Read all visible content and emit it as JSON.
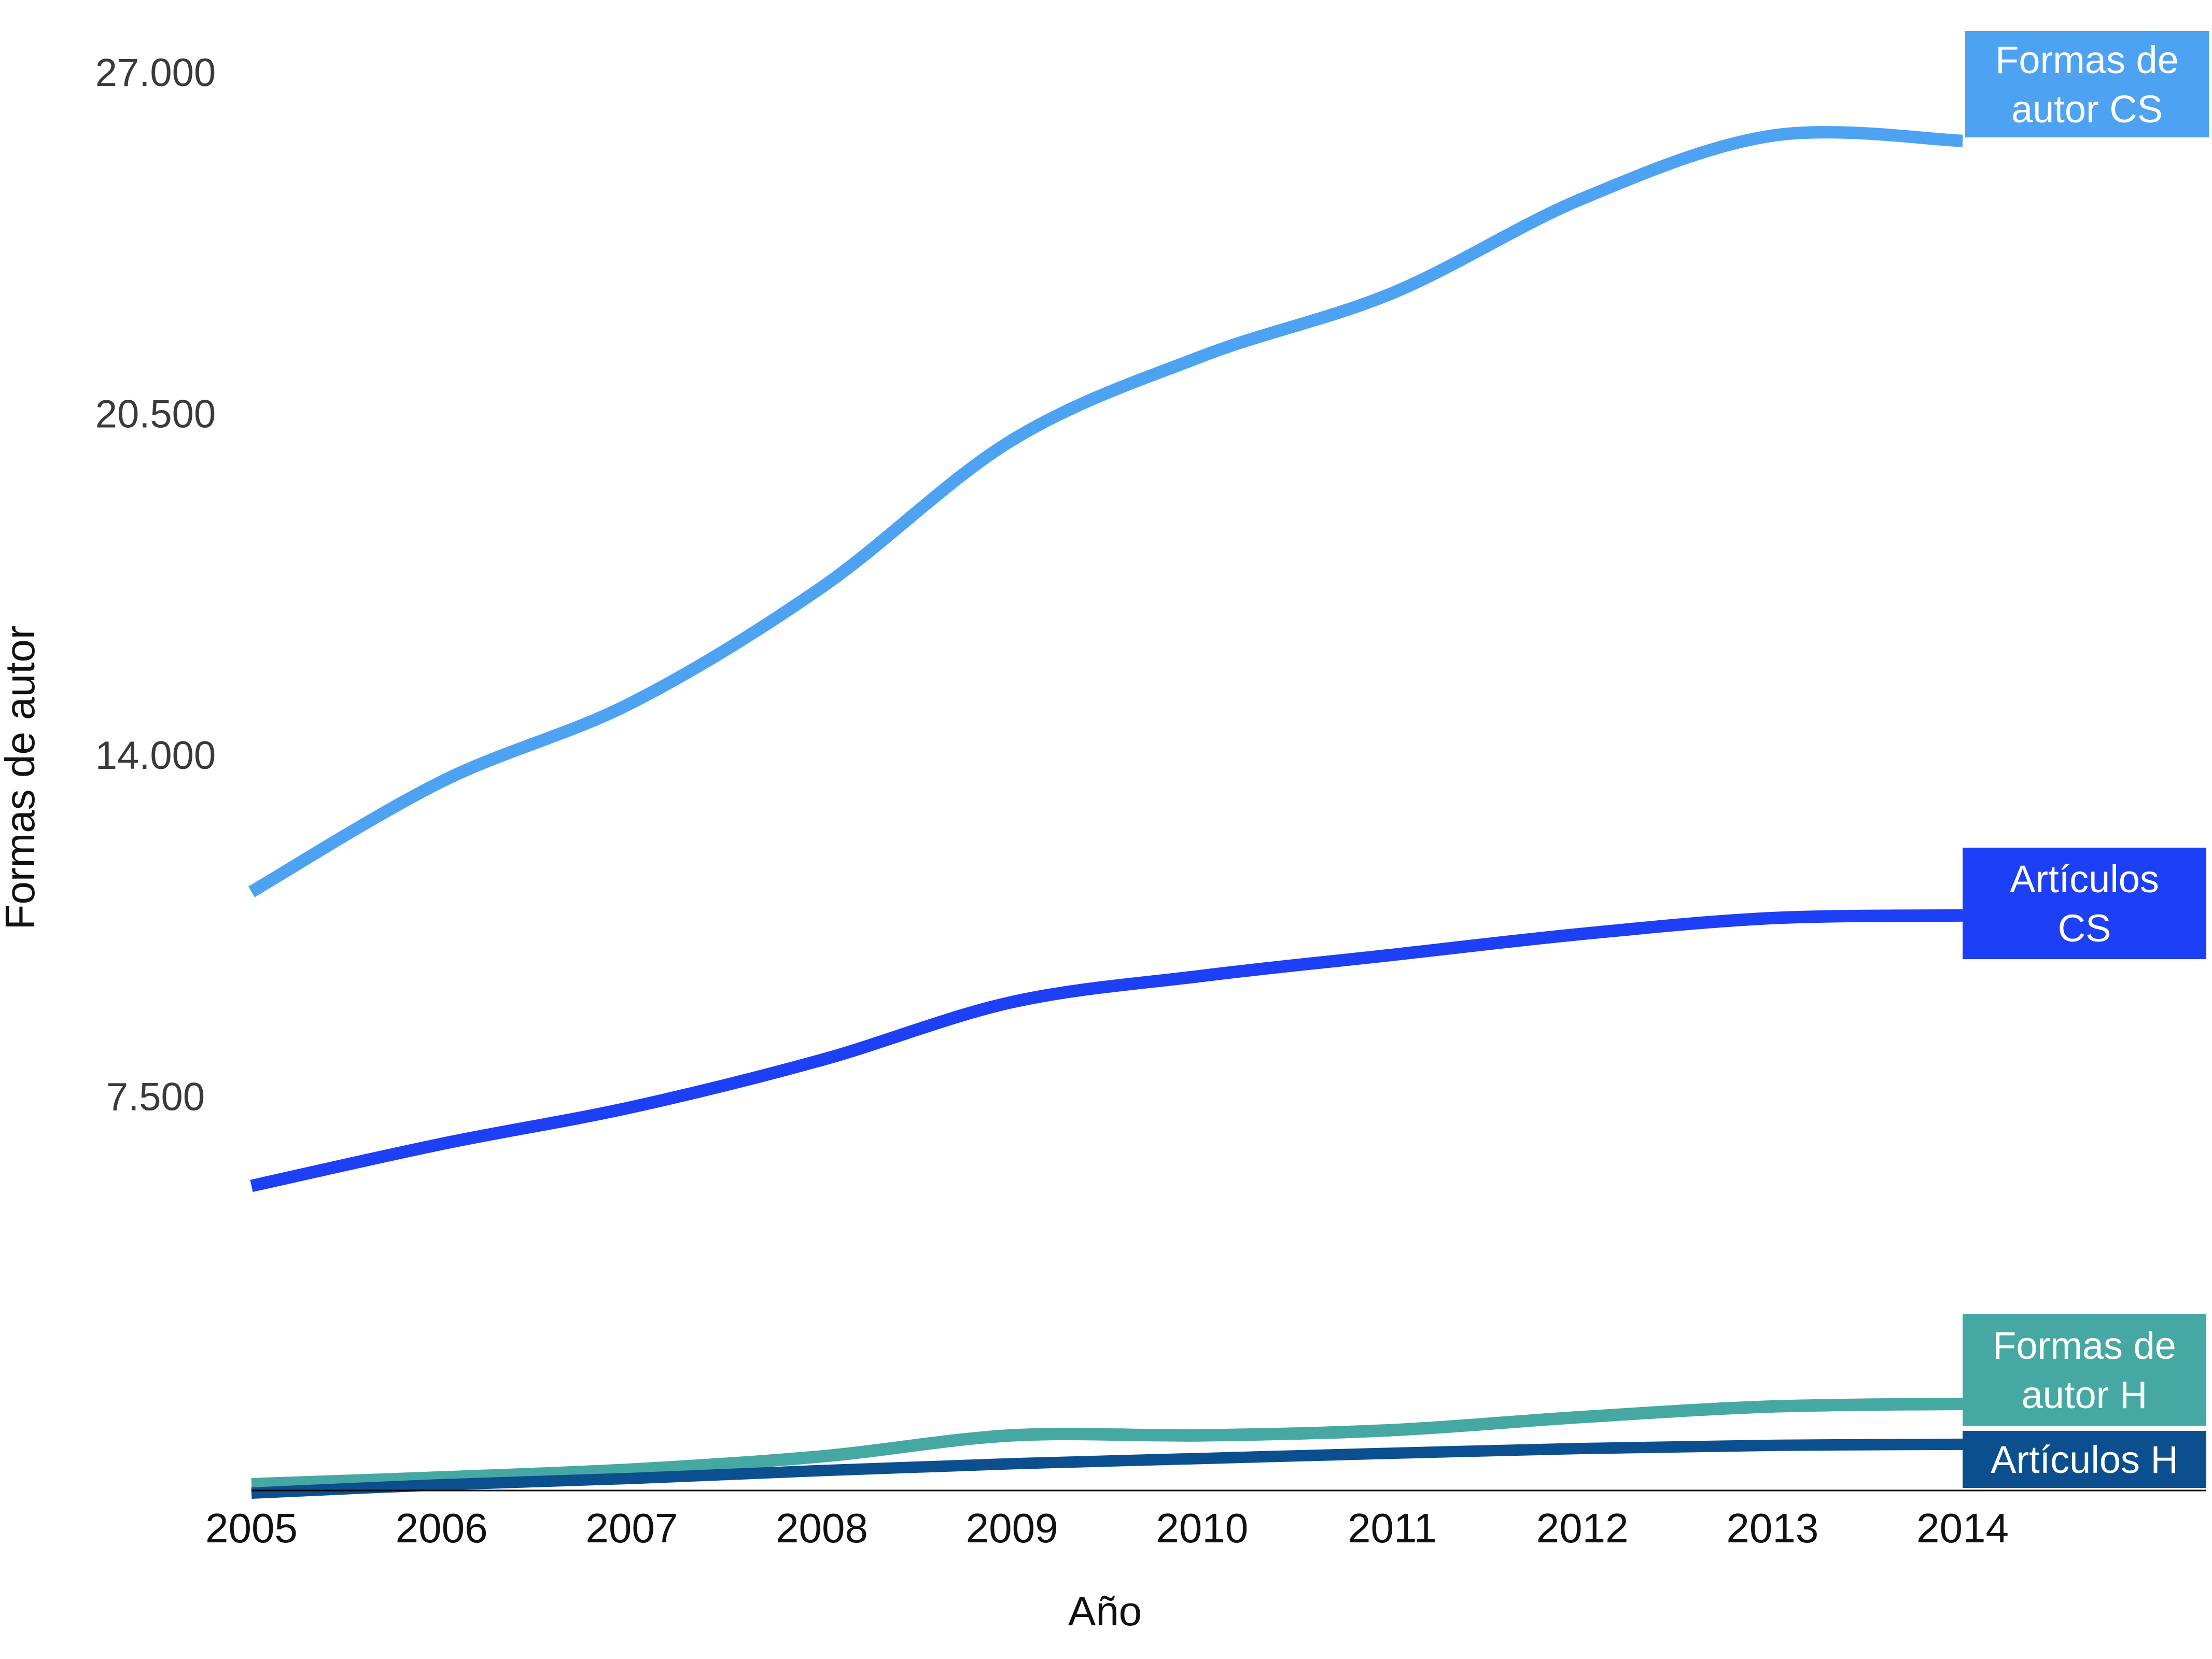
{
  "chart_data": {
    "type": "line",
    "xlabel": "Año",
    "ylabel": "Formas de autor",
    "x": [
      2005,
      2006,
      2007,
      2008,
      2009,
      2010,
      2011,
      2012,
      2013,
      2014
    ],
    "x_tick_labels": [
      "2005",
      "2006",
      "2007",
      "2008",
      "2009",
      "2010",
      "2011",
      "2012",
      "2013",
      "2014"
    ],
    "y_ticks": [
      7500,
      14000,
      20500,
      27000
    ],
    "y_tick_labels": [
      "7.500",
      "14.000",
      "20.500",
      "27.000"
    ],
    "ylim": [
      0,
      27000
    ],
    "grid": false,
    "legend": "inline labels at right end of each line",
    "series": [
      {
        "name": "Formas de autor CS",
        "label_lines": [
          "Formas de",
          "autor CS"
        ],
        "color": "#4da3f2",
        "values": [
          11400,
          13500,
          15000,
          17200,
          20000,
          21600,
          22800,
          24600,
          25800,
          25700
        ]
      },
      {
        "name": "Artículos CS",
        "label_lines": [
          "Artículos",
          "CS"
        ],
        "color": "#1d3ff5",
        "values": [
          5800,
          6600,
          7300,
          8200,
          9300,
          9800,
          10200,
          10600,
          10900,
          10950
        ]
      },
      {
        "name": "Formas de autor H",
        "label_lines": [
          "Formas de",
          "autor  H"
        ],
        "color": "#46a8a3",
        "values": [
          120,
          250,
          400,
          650,
          1050,
          1050,
          1150,
          1400,
          1600,
          1650
        ]
      },
      {
        "name": "Artículos H",
        "label_lines": [
          "Artículos H"
        ],
        "color": "#0b4f8f",
        "values": [
          -50,
          110,
          230,
          380,
          510,
          610,
          710,
          800,
          860,
          880
        ]
      }
    ]
  }
}
